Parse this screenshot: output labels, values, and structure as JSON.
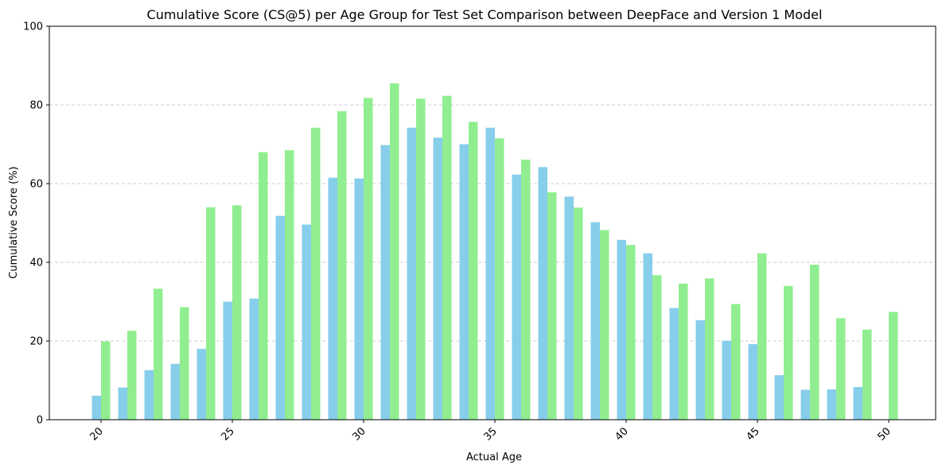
{
  "chart_data": {
    "type": "bar",
    "title": "Cumulative Score (CS@5) per Age Group for Test Set Comparison between DeepFace and Version 1 Model",
    "xlabel": "Actual Age",
    "ylabel": "Cumulative Score (%)",
    "ylim": [
      0,
      100
    ],
    "yticks": [
      0,
      20,
      40,
      60,
      80,
      100
    ],
    "xticks": [
      20,
      25,
      30,
      35,
      40,
      45,
      50
    ],
    "grid": "y-dashed",
    "categories": [
      20,
      21,
      22,
      23,
      24,
      25,
      26,
      27,
      28,
      29,
      30,
      31,
      32,
      33,
      34,
      35,
      36,
      37,
      38,
      39,
      40,
      41,
      42,
      43,
      44,
      45,
      46,
      47,
      48,
      49,
      50
    ],
    "series": [
      {
        "color": "#87ceeb",
        "values": [
          6.1,
          8.2,
          12.6,
          14.2,
          18.0,
          30.0,
          30.8,
          51.8,
          49.6,
          61.5,
          61.3,
          69.8,
          74.2,
          71.7,
          70.0,
          74.2,
          62.3,
          64.2,
          56.7,
          50.2,
          45.7,
          42.3,
          28.4,
          25.3,
          20.1,
          19.2,
          11.3,
          7.6,
          7.7,
          8.3,
          0
        ]
      },
      {
        "color": "#90ee90",
        "values": [
          19.9,
          22.6,
          33.3,
          28.6,
          54.0,
          54.5,
          68.0,
          68.5,
          74.2,
          78.4,
          81.8,
          85.5,
          81.6,
          82.3,
          75.7,
          71.5,
          66.1,
          57.8,
          53.9,
          48.2,
          44.4,
          36.7,
          34.6,
          35.9,
          29.4,
          42.3,
          34.0,
          39.4,
          25.8,
          22.9,
          27.4
        ]
      }
    ]
  }
}
